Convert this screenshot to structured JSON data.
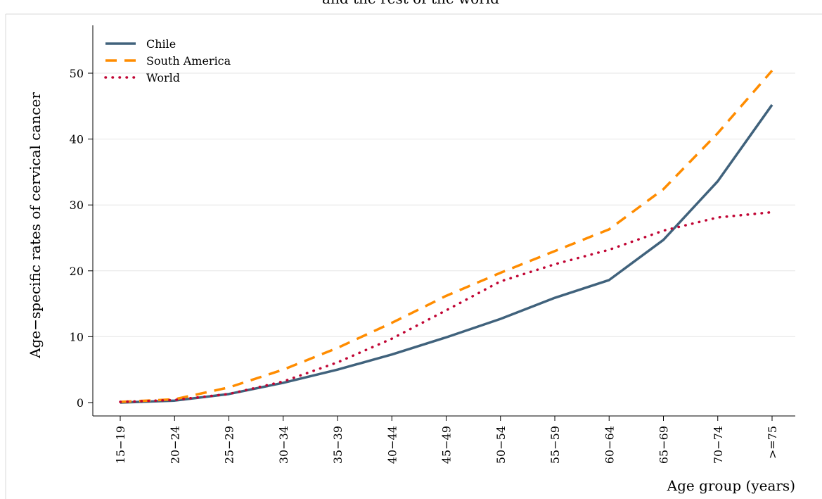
{
  "chart_data": {
    "type": "line",
    "title": "and the rest of the world",
    "xlabel": "Age group (years)",
    "ylabel": "Age−specific rates of cervical cancer",
    "categories": [
      "15−19",
      "20−24",
      "25−29",
      "30−34",
      "35−39",
      "40−44",
      "45−49",
      "50−54",
      "55−59",
      "60−64",
      "65−69",
      "70−74",
      ">=75"
    ],
    "ylim": [
      -2.5,
      57
    ],
    "yticks": [
      0,
      10,
      20,
      30,
      40,
      50
    ],
    "grid": true,
    "legend_position": "top-left",
    "series": [
      {
        "name": "Chile",
        "color": "#40627c",
        "dash": "solid",
        "values": [
          0.0,
          0.3,
          1.3,
          3.0,
          5.0,
          7.3,
          9.9,
          12.7,
          15.9,
          18.6,
          24.7,
          33.6,
          45.2
        ]
      },
      {
        "name": "South America",
        "color": "#ff8c00",
        "dash": "dash",
        "values": [
          0.1,
          0.5,
          2.3,
          5.0,
          8.3,
          12.1,
          16.2,
          19.7,
          23.0,
          26.3,
          32.4,
          40.9,
          50.4
        ]
      },
      {
        "name": "World",
        "color": "#c10534",
        "dash": "dot",
        "values": [
          0.1,
          0.4,
          1.3,
          3.2,
          6.1,
          9.7,
          14.0,
          18.4,
          21.0,
          23.2,
          26.1,
          28.1,
          28.9
        ]
      }
    ]
  }
}
